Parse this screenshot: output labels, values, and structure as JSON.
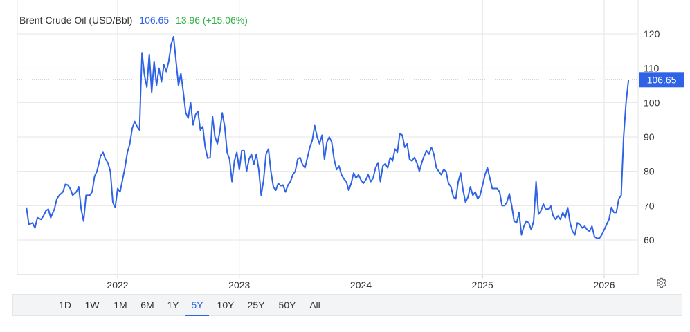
{
  "header": {
    "title": "Brent Crude Oil (USD/Bbl)",
    "value": "106.65",
    "change": "13.96 (+15.06%)"
  },
  "range_buttons": [
    "1D",
    "1W",
    "1M",
    "6M",
    "1Y",
    "5Y",
    "10Y",
    "25Y",
    "50Y",
    "All"
  ],
  "active_range": "5Y",
  "icons": {
    "settings": "gear-icon"
  },
  "colors": {
    "line": "#2f63e6",
    "positive": "#2fb344",
    "grid": "#e6e6e6"
  },
  "chart_data": {
    "type": "line",
    "title": "Brent Crude Oil (USD/Bbl)",
    "last_value": 106.65,
    "last_value_label": "106.65",
    "ylim": [
      50,
      125
    ],
    "y_ticks": [
      60,
      70,
      80,
      90,
      100,
      110,
      120
    ],
    "x_ticks": [
      "2022",
      "2023",
      "2024",
      "2025",
      "2026"
    ],
    "xlim": [
      2021.25,
      2026.22
    ],
    "grid": true,
    "series": [
      {
        "values": [
          [
            2021.25,
            69.5
          ],
          [
            2021.27,
            64.5
          ],
          [
            2021.3,
            65
          ],
          [
            2021.32,
            63.5
          ],
          [
            2021.34,
            66.5
          ],
          [
            2021.37,
            66
          ],
          [
            2021.39,
            67
          ],
          [
            2021.41,
            68.5
          ],
          [
            2021.43,
            69
          ],
          [
            2021.45,
            66.5
          ],
          [
            2021.48,
            69
          ],
          [
            2021.5,
            72
          ],
          [
            2021.52,
            73
          ],
          [
            2021.55,
            74
          ],
          [
            2021.57,
            76.2
          ],
          [
            2021.59,
            76
          ],
          [
            2021.61,
            75
          ],
          [
            2021.63,
            73
          ],
          [
            2021.66,
            74
          ],
          [
            2021.68,
            75.5
          ],
          [
            2021.7,
            69
          ],
          [
            2021.72,
            65.5
          ],
          [
            2021.74,
            73
          ],
          [
            2021.77,
            73
          ],
          [
            2021.79,
            74
          ],
          [
            2021.81,
            78.5
          ],
          [
            2021.83,
            80
          ],
          [
            2021.86,
            84.5
          ],
          [
            2021.88,
            85.5
          ],
          [
            2021.9,
            83.5
          ],
          [
            2021.92,
            82.5
          ],
          [
            2021.94,
            80
          ],
          [
            2021.96,
            71
          ],
          [
            2021.98,
            69.5
          ],
          [
            2022.0,
            75
          ],
          [
            2022.02,
            74
          ],
          [
            2022.04,
            77.5
          ],
          [
            2022.06,
            81
          ],
          [
            2022.08,
            85.5
          ],
          [
            2022.1,
            88
          ],
          [
            2022.12,
            92.5
          ],
          [
            2022.14,
            94.5
          ],
          [
            2022.16,
            93
          ],
          [
            2022.18,
            92
          ],
          [
            2022.19,
            104
          ],
          [
            2022.2,
            114.5
          ],
          [
            2022.22,
            108
          ],
          [
            2022.24,
            104.5
          ],
          [
            2022.26,
            114
          ],
          [
            2022.28,
            103
          ],
          [
            2022.3,
            112
          ],
          [
            2022.32,
            105
          ],
          [
            2022.34,
            110
          ],
          [
            2022.36,
            106
          ],
          [
            2022.38,
            111
          ],
          [
            2022.4,
            109
          ],
          [
            2022.42,
            112
          ],
          [
            2022.44,
            117
          ],
          [
            2022.46,
            119.2
          ],
          [
            2022.48,
            112
          ],
          [
            2022.5,
            105
          ],
          [
            2022.52,
            108.5
          ],
          [
            2022.54,
            103
          ],
          [
            2022.56,
            97
          ],
          [
            2022.58,
            95.5
          ],
          [
            2022.6,
            100
          ],
          [
            2022.62,
            93.5
          ],
          [
            2022.64,
            96.5
          ],
          [
            2022.66,
            97.5
          ],
          [
            2022.68,
            92
          ],
          [
            2022.7,
            93
          ],
          [
            2022.72,
            87
          ],
          [
            2022.74,
            83.8
          ],
          [
            2022.76,
            84
          ],
          [
            2022.78,
            96
          ],
          [
            2022.8,
            90
          ],
          [
            2022.82,
            88
          ],
          [
            2022.84,
            91.5
          ],
          [
            2022.86,
            97
          ],
          [
            2022.88,
            93
          ],
          [
            2022.9,
            85.5
          ],
          [
            2022.92,
            83.5
          ],
          [
            2022.94,
            77
          ],
          [
            2022.96,
            83
          ],
          [
            2022.98,
            85.5
          ],
          [
            2023.0,
            80.5
          ],
          [
            2023.02,
            86
          ],
          [
            2023.04,
            86
          ],
          [
            2023.06,
            80
          ],
          [
            2023.08,
            83.5
          ],
          [
            2023.1,
            85
          ],
          [
            2023.12,
            82
          ],
          [
            2023.14,
            85
          ],
          [
            2023.16,
            80.5
          ],
          [
            2023.18,
            73
          ],
          [
            2023.2,
            77.5
          ],
          [
            2023.22,
            85
          ],
          [
            2023.24,
            86.5
          ],
          [
            2023.26,
            80
          ],
          [
            2023.28,
            75.5
          ],
          [
            2023.3,
            74.5
          ],
          [
            2023.32,
            76.5
          ],
          [
            2023.34,
            75.8
          ],
          [
            2023.36,
            76
          ],
          [
            2023.38,
            74
          ],
          [
            2023.4,
            76
          ],
          [
            2023.42,
            77
          ],
          [
            2023.44,
            79
          ],
          [
            2023.46,
            80
          ],
          [
            2023.48,
            83.5
          ],
          [
            2023.5,
            84
          ],
          [
            2023.52,
            82
          ],
          [
            2023.54,
            81
          ],
          [
            2023.56,
            84
          ],
          [
            2023.58,
            87
          ],
          [
            2023.6,
            89
          ],
          [
            2023.62,
            93.3
          ],
          [
            2023.64,
            90
          ],
          [
            2023.66,
            88
          ],
          [
            2023.68,
            90.5
          ],
          [
            2023.7,
            83.5
          ],
          [
            2023.72,
            88.5
          ],
          [
            2023.74,
            90
          ],
          [
            2023.76,
            88.5
          ],
          [
            2023.78,
            83.5
          ],
          [
            2023.8,
            80.5
          ],
          [
            2023.82,
            81.5
          ],
          [
            2023.84,
            79
          ],
          [
            2023.86,
            77.8
          ],
          [
            2023.88,
            77
          ],
          [
            2023.9,
            74.5
          ],
          [
            2023.92,
            76.5
          ],
          [
            2023.94,
            79.5
          ],
          [
            2023.96,
            78
          ],
          [
            2023.98,
            79
          ],
          [
            2024.0,
            77.5
          ],
          [
            2024.02,
            76.5
          ],
          [
            2024.04,
            77.5
          ],
          [
            2024.06,
            79
          ],
          [
            2024.08,
            77
          ],
          [
            2024.1,
            78
          ],
          [
            2024.12,
            81
          ],
          [
            2024.14,
            82.5
          ],
          [
            2024.16,
            77
          ],
          [
            2024.18,
            81.5
          ],
          [
            2024.2,
            82.2
          ],
          [
            2024.22,
            81
          ],
          [
            2024.24,
            84
          ],
          [
            2024.26,
            83
          ],
          [
            2024.28,
            86.5
          ],
          [
            2024.3,
            85.5
          ],
          [
            2024.32,
            91
          ],
          [
            2024.34,
            90.5
          ],
          [
            2024.36,
            87
          ],
          [
            2024.38,
            88
          ],
          [
            2024.4,
            83.5
          ],
          [
            2024.42,
            83
          ],
          [
            2024.44,
            84
          ],
          [
            2024.46,
            82.5
          ],
          [
            2024.48,
            80
          ],
          [
            2024.5,
            82.5
          ],
          [
            2024.52,
            84.5
          ],
          [
            2024.54,
            86
          ],
          [
            2024.56,
            85
          ],
          [
            2024.58,
            87
          ],
          [
            2024.6,
            85
          ],
          [
            2024.62,
            81
          ],
          [
            2024.64,
            80
          ],
          [
            2024.66,
            79
          ],
          [
            2024.68,
            80.5
          ],
          [
            2024.7,
            80
          ],
          [
            2024.72,
            76.5
          ],
          [
            2024.74,
            75.5
          ],
          [
            2024.76,
            72.5
          ],
          [
            2024.78,
            72
          ],
          [
            2024.8,
            77
          ],
          [
            2024.82,
            79.5
          ],
          [
            2024.84,
            74.5
          ],
          [
            2024.86,
            71
          ],
          [
            2024.88,
            72.5
          ],
          [
            2024.9,
            75.5
          ],
          [
            2024.92,
            73
          ],
          [
            2024.94,
            74
          ],
          [
            2024.96,
            72
          ],
          [
            2024.98,
            73
          ],
          [
            2025.0,
            76
          ],
          [
            2025.02,
            79
          ],
          [
            2025.04,
            81
          ],
          [
            2025.06,
            78
          ],
          [
            2025.08,
            75
          ],
          [
            2025.1,
            75
          ],
          [
            2025.12,
            75
          ],
          [
            2025.14,
            74
          ],
          [
            2025.16,
            70
          ],
          [
            2025.18,
            70
          ],
          [
            2025.2,
            71
          ],
          [
            2025.22,
            73.5
          ],
          [
            2025.24,
            70
          ],
          [
            2025.26,
            65.5
          ],
          [
            2025.28,
            65
          ],
          [
            2025.3,
            68
          ],
          [
            2025.32,
            61.5
          ],
          [
            2025.34,
            64
          ],
          [
            2025.36,
            65.5
          ],
          [
            2025.38,
            65
          ],
          [
            2025.4,
            63
          ],
          [
            2025.42,
            65.5
          ],
          [
            2025.44,
            77
          ],
          [
            2025.46,
            67.5
          ],
          [
            2025.48,
            68.5
          ],
          [
            2025.5,
            70.5
          ],
          [
            2025.52,
            69
          ],
          [
            2025.54,
            69
          ],
          [
            2025.56,
            70
          ],
          [
            2025.58,
            67
          ],
          [
            2025.6,
            66
          ],
          [
            2025.62,
            67
          ],
          [
            2025.64,
            66
          ],
          [
            2025.66,
            68
          ],
          [
            2025.68,
            66.5
          ],
          [
            2025.7,
            69.5
          ],
          [
            2025.72,
            65
          ],
          [
            2025.74,
            62.5
          ],
          [
            2025.76,
            61.5
          ],
          [
            2025.78,
            65
          ],
          [
            2025.8,
            64.5
          ],
          [
            2025.82,
            63.5
          ],
          [
            2025.84,
            64
          ],
          [
            2025.86,
            63
          ],
          [
            2025.88,
            62.5
          ],
          [
            2025.9,
            64
          ],
          [
            2025.92,
            61
          ],
          [
            2025.94,
            60.5
          ],
          [
            2025.96,
            60.5
          ],
          [
            2025.98,
            61.5
          ],
          [
            2026.0,
            63
          ],
          [
            2026.02,
            64.5
          ],
          [
            2026.04,
            66
          ],
          [
            2026.06,
            69.5
          ],
          [
            2026.08,
            68
          ],
          [
            2026.1,
            68
          ],
          [
            2026.12,
            72
          ],
          [
            2026.14,
            73
          ],
          [
            2026.16,
            90
          ],
          [
            2026.18,
            100
          ],
          [
            2026.2,
            106.65
          ]
        ]
      }
    ]
  }
}
